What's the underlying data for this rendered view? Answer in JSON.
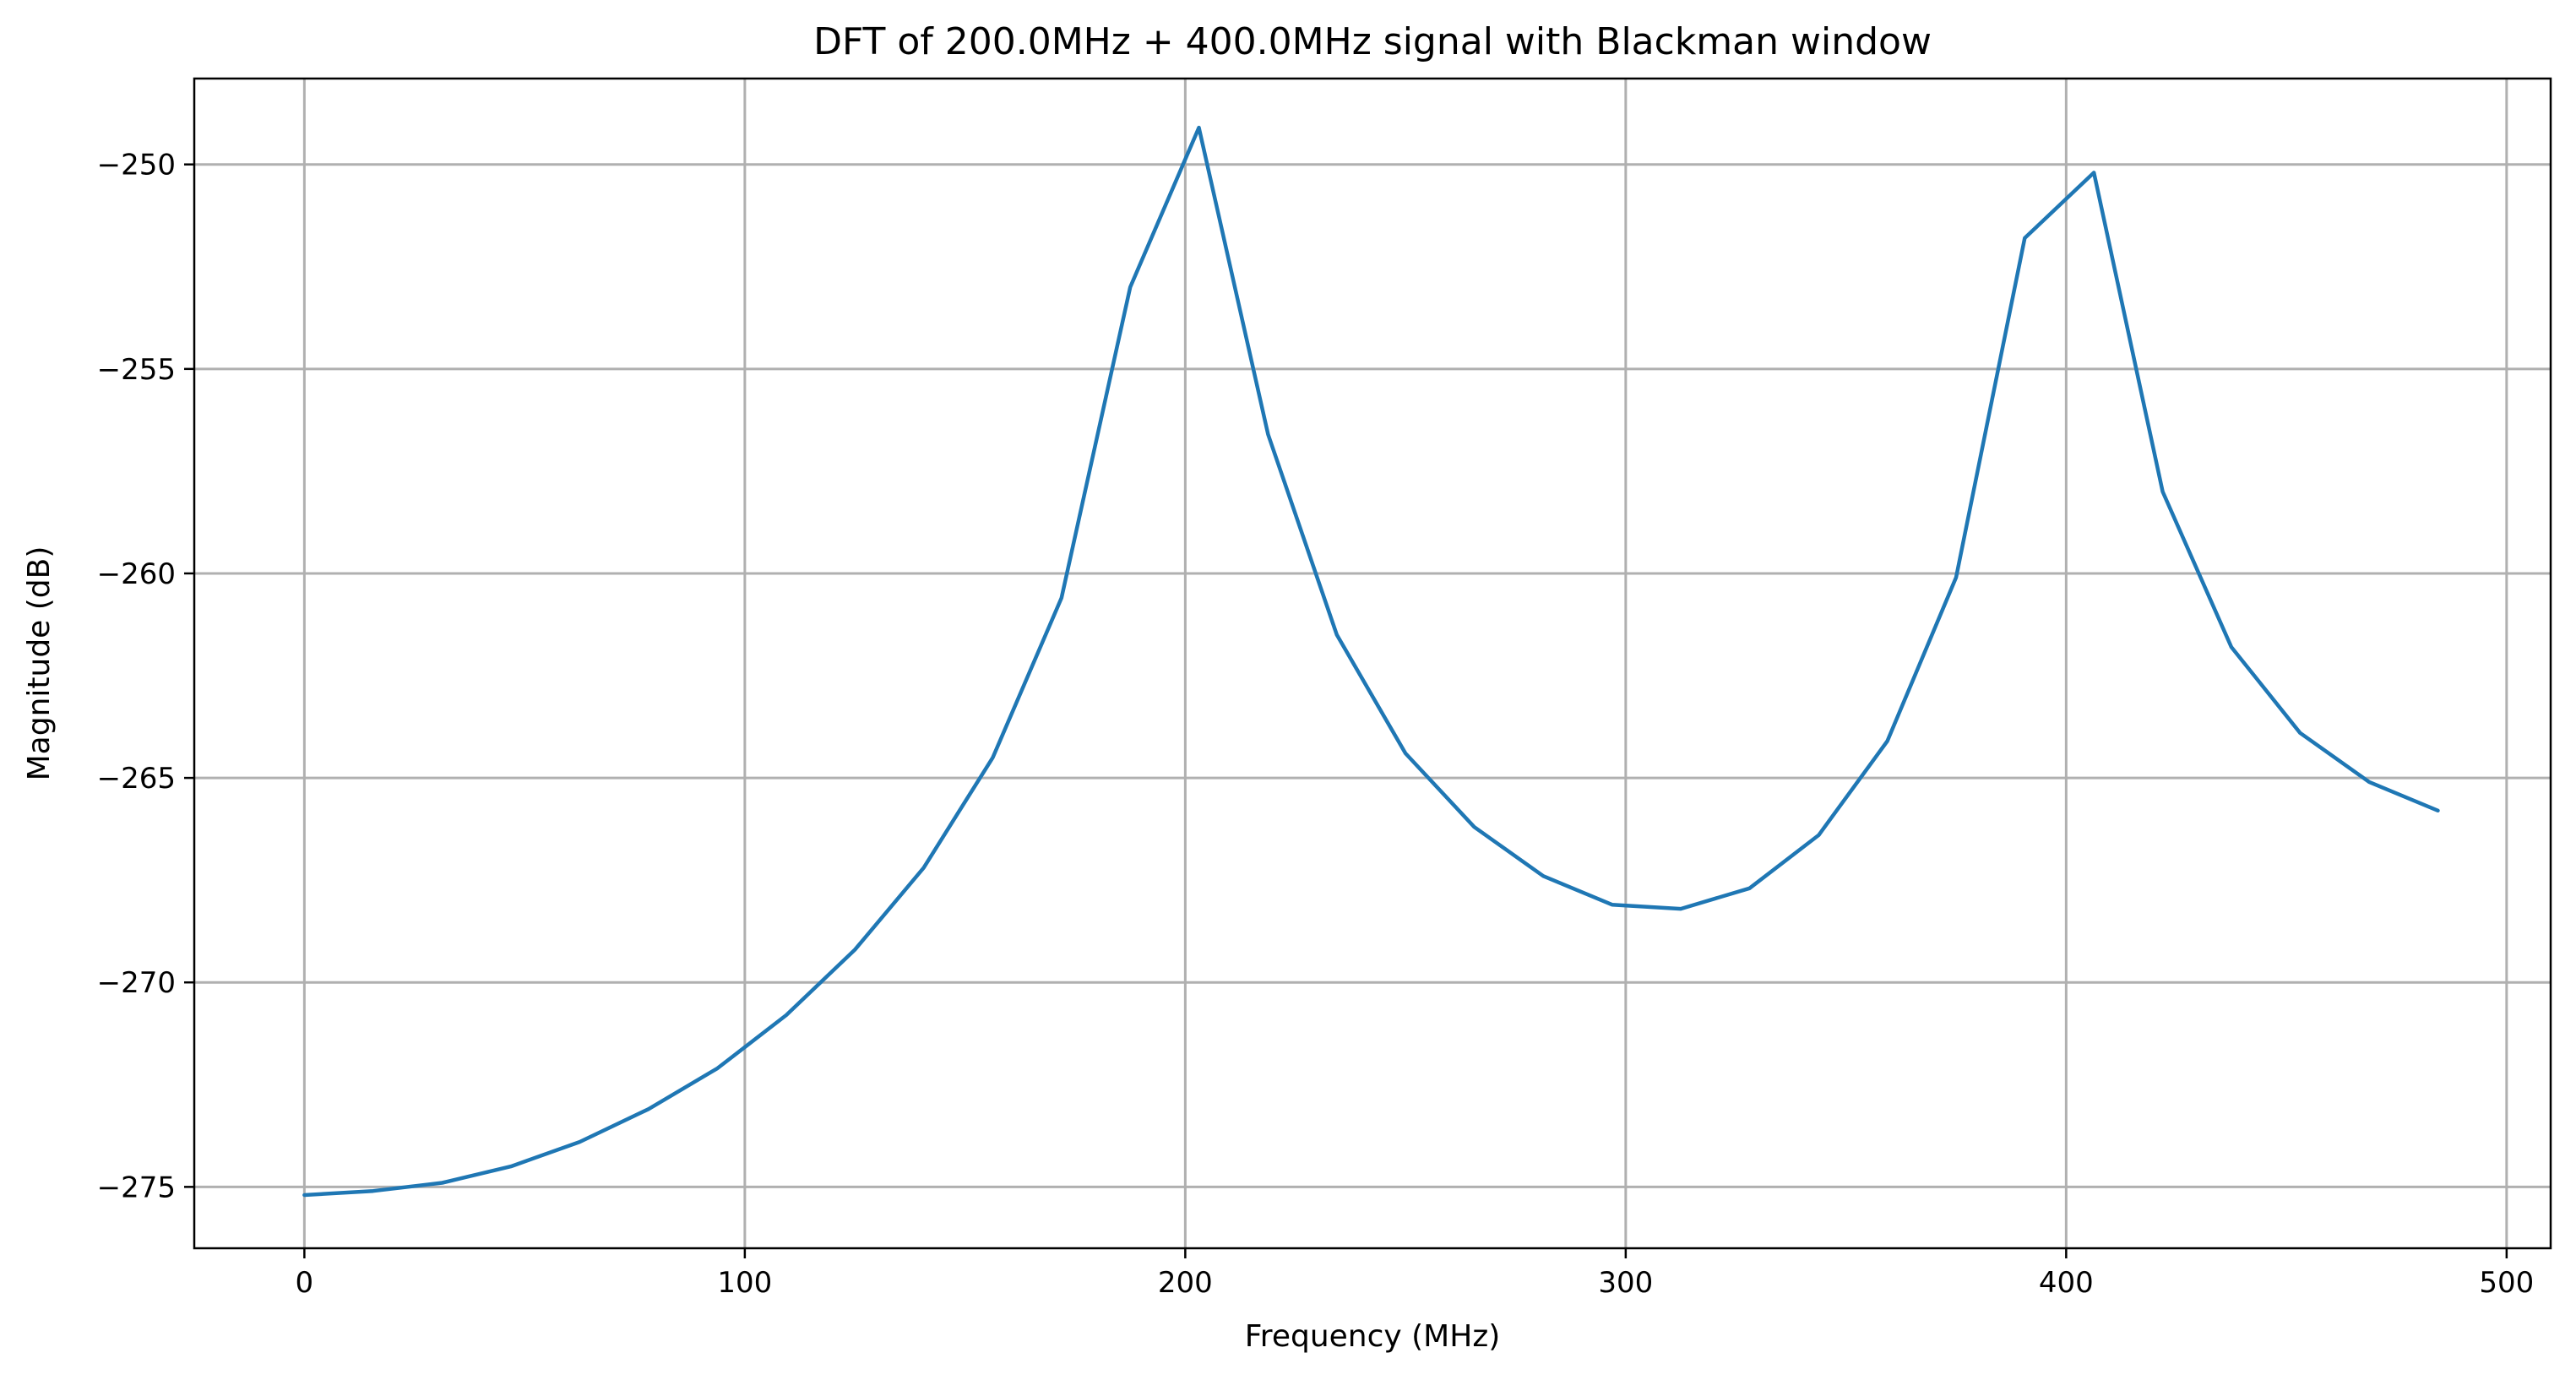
{
  "chart_data": {
    "type": "line",
    "title": "DFT of 200.0MHz + 400.0MHz signal with Blackman window",
    "xlabel": "Frequency (MHz)",
    "ylabel": "Magnitude (dB)",
    "xlim": [
      -25,
      510
    ],
    "ylim": [
      -276.5,
      -247.9
    ],
    "grid": true,
    "x_ticks": [
      0,
      100,
      200,
      300,
      400,
      500
    ],
    "x_tick_labels": [
      "0",
      "100",
      "200",
      "300",
      "400",
      "500"
    ],
    "y_ticks": [
      -250,
      -255,
      -260,
      -265,
      -270,
      -275
    ],
    "y_tick_labels": [
      "−250",
      "−255",
      "−260",
      "−265",
      "−270",
      "−275"
    ],
    "series": [
      {
        "color": "#1f77b4",
        "x": [
          0,
          15.6,
          31.3,
          46.9,
          62.5,
          78.1,
          93.8,
          109.4,
          125.0,
          140.6,
          156.3,
          171.9,
          187.5,
          203.1,
          218.8,
          234.4,
          250.0,
          265.6,
          281.3,
          296.9,
          312.5,
          328.1,
          343.8,
          359.4,
          375.0,
          390.6,
          406.3,
          421.9,
          437.5,
          453.1,
          468.8,
          484.4
        ],
        "y": [
          -275.2,
          -275.1,
          -274.9,
          -274.5,
          -273.9,
          -273.1,
          -272.1,
          -270.8,
          -269.2,
          -267.2,
          -264.5,
          -260.6,
          -253.0,
          -249.1,
          -256.6,
          -261.5,
          -264.4,
          -266.2,
          -267.4,
          -268.1,
          -268.2,
          -267.7,
          -266.4,
          -264.1,
          -260.1,
          -251.8,
          -250.2,
          -258.0,
          -261.8,
          -263.9,
          -265.1,
          -265.8
        ]
      }
    ]
  }
}
